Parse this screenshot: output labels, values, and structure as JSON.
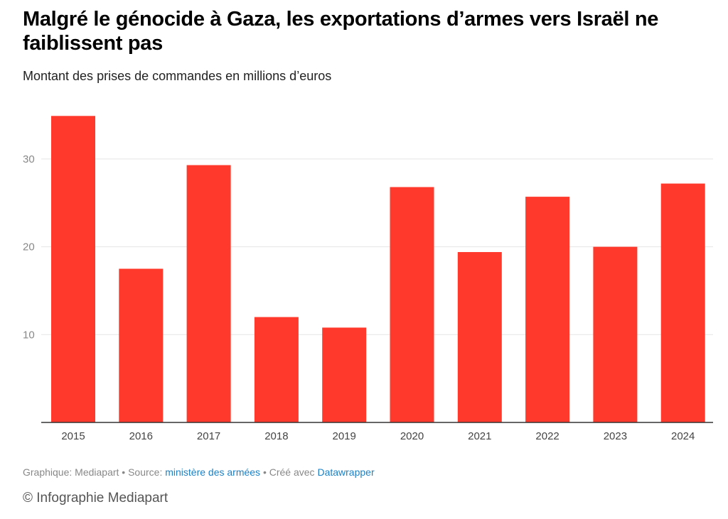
{
  "chart_data": {
    "type": "bar",
    "title": "Malgré le génocide à Gaza, les exportations d’armes vers Israël ne faiblissent pas",
    "subtitle": "Montant des prises de commandes en millions d’euros",
    "categories": [
      "2015",
      "2016",
      "2017",
      "2018",
      "2019",
      "2020",
      "2021",
      "2022",
      "2023",
      "2024"
    ],
    "values": [
      34.9,
      17.5,
      29.3,
      12.0,
      10.8,
      26.8,
      19.4,
      25.7,
      20.0,
      27.2
    ],
    "xlabel": "",
    "ylabel": "",
    "ylim": [
      0,
      35
    ],
    "yticks": [
      "10",
      "20",
      "30"
    ],
    "grid": true,
    "bar_color": "#ff3a2d"
  },
  "footer": {
    "prefix": "Graphique: Mediapart • Source: ",
    "source_link": "ministère des armées",
    "middle": " • Créé avec ",
    "tool_link": "Datawrapper"
  },
  "credit": "© Infographie Mediapart"
}
